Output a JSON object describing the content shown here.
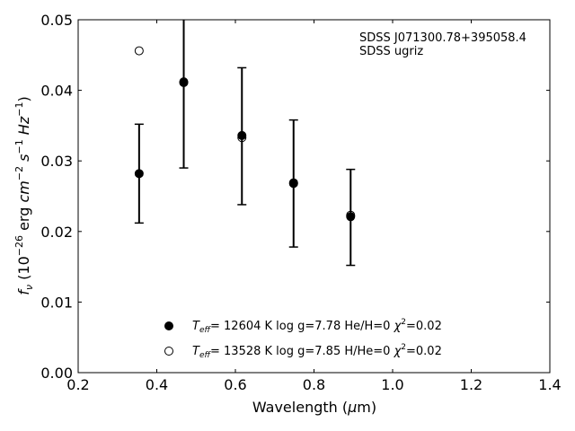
{
  "chart_data": {
    "type": "scatter",
    "xlabel_text": "Wavelength (",
    "xlabel_greek": "μ",
    "xlabel_unit": "m)",
    "ylabel": {
      "f": "f",
      "nu": "ν",
      "open": " (10",
      "exp1": "−26",
      "erg": " erg ",
      "cm": "cm",
      "exp2": "−2",
      "s": " s",
      "exp3": "−1",
      "hz": " Hz",
      "exp4": "−1",
      "close": ")"
    },
    "annotation": [
      "SDSS J071300.78+395058.4",
      "SDSS ugriz"
    ],
    "xlim": [
      0.2,
      1.4
    ],
    "ylim": [
      0.0,
      0.05
    ],
    "xticks": [
      "0.2",
      "0.4",
      "0.6",
      "0.8",
      "1.0",
      "1.2",
      "1.4"
    ],
    "yticks": [
      "0.00",
      "0.01",
      "0.02",
      "0.03",
      "0.04",
      "0.05"
    ],
    "observed": {
      "x": [
        0.3551,
        0.4686,
        0.6166,
        0.748,
        0.8932
      ],
      "y": [
        0.0282,
        0.0409,
        0.0335,
        0.0268,
        0.022
      ],
      "yerr": [
        0.007,
        0.0119,
        0.0097,
        0.009,
        0.0068
      ]
    },
    "series": [
      {
        "name": "T_eff= 12604 K  log g=7.78  He/H=0  χ²=0.02",
        "marker": "filled",
        "x": [
          0.3551,
          0.4686,
          0.6166,
          0.748,
          0.8932
        ],
        "y": [
          0.0282,
          0.0411,
          0.0336,
          0.0269,
          0.0221
        ]
      },
      {
        "name": "T_eff= 13528 K  log g=7.85  H/He=0  χ²=0.02",
        "marker": "open",
        "x": [
          0.3551,
          0.4686,
          0.6166,
          0.748,
          0.8932
        ],
        "y": [
          0.0456,
          0.0412,
          0.0333,
          0.0268,
          0.0223
        ]
      }
    ],
    "legend": [
      {
        "t": "T",
        "sub": "eff",
        "rest1": "= 12604 K  log g=7.78  He/H=0  ",
        "chi": "χ",
        "sup": "2",
        "rest2": "=0.02"
      },
      {
        "t": "T",
        "sub": "eff",
        "rest1": "= 13528 K  log g=7.85  H/He=0  ",
        "chi": "χ",
        "sup": "2",
        "rest2": "=0.02"
      }
    ],
    "legend_position": "lower center",
    "grid": false
  }
}
